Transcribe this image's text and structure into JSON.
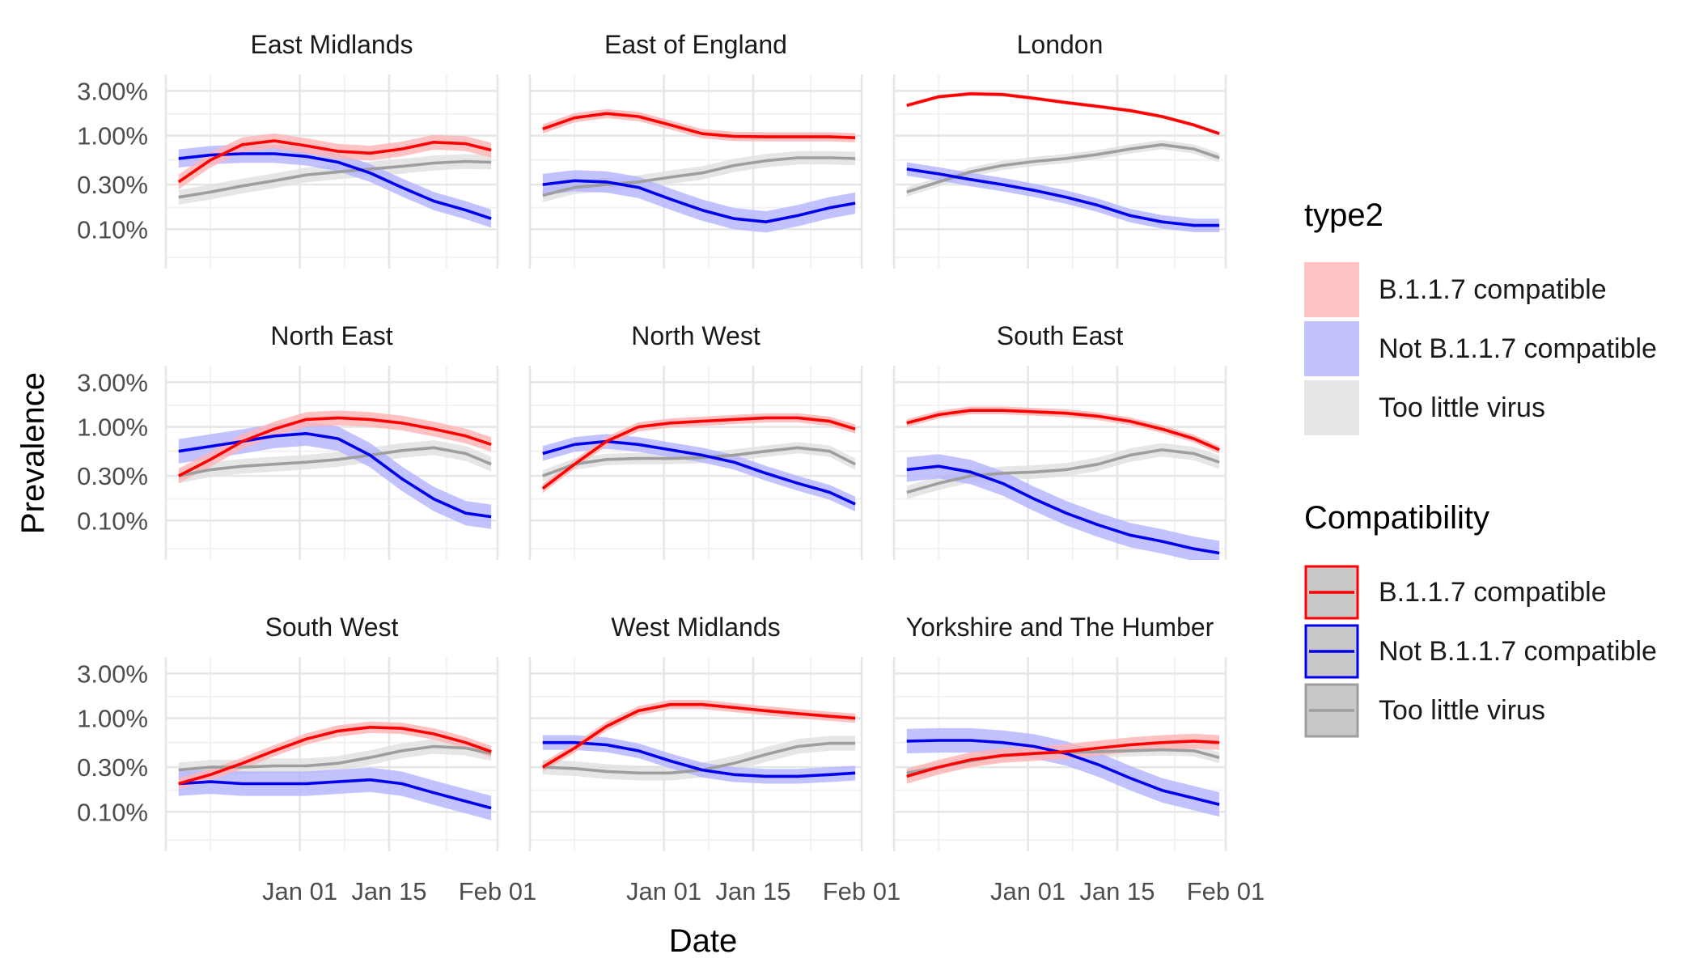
{
  "chart_data": {
    "type": "line",
    "layout": "faceted 3x3 small multiples, shared axes, legends at right",
    "xlabel": "Date",
    "ylabel": "Prevalence",
    "y_scale": "log10",
    "ylim": [
      0.038,
      4.5
    ],
    "y_ticks": [
      0.1,
      0.3,
      1.0,
      3.0
    ],
    "y_tick_labels": [
      "0.10%",
      "0.30%",
      "1.00%",
      "3.00%"
    ],
    "xlim": [
      "2020-12-11",
      "2021-02-01"
    ],
    "x_ticks": [
      "2021-01-01",
      "2021-01-15",
      "2021-02-01"
    ],
    "x_tick_labels": [
      "Jan 01",
      "Jan 15",
      "Feb 01"
    ],
    "grid": true,
    "legend_placement": "right",
    "colors": {
      "B.1.1.7 compatible": "#ff0000",
      "Not B.1.1.7 compatible": "#0000ee",
      "Too little virus": "#9e9e9e",
      "fill_B.1.1.7 compatible": "#ffb3b3",
      "fill_Not B.1.1.7 compatible": "#b3b3ff",
      "fill_Too little virus": "#e0e0e0"
    },
    "x": [
      "2020-12-13",
      "2020-12-18",
      "2020-12-23",
      "2020-12-28",
      "2021-01-02",
      "2021-01-07",
      "2021-01-12",
      "2021-01-17",
      "2021-01-22",
      "2021-01-27",
      "2021-01-31"
    ],
    "legends": [
      {
        "title": "type2",
        "kind": "fill",
        "entries": [
          "B.1.1.7 compatible",
          "Not B.1.1.7 compatible",
          "Too little virus"
        ]
      },
      {
        "title": "Compatibility",
        "kind": "line",
        "entries": [
          "B.1.1.7 compatible",
          "Not B.1.1.7 compatible",
          "Too little virus"
        ]
      }
    ],
    "panels": [
      {
        "title": "East Midlands",
        "series": [
          {
            "name": "Too little virus",
            "values": [
              0.22,
              0.25,
              0.29,
              0.33,
              0.38,
              0.41,
              0.44,
              0.47,
              0.51,
              0.53,
              0.52
            ],
            "band": 0.2
          },
          {
            "name": "B.1.1.7 compatible",
            "values": [
              0.32,
              0.55,
              0.8,
              0.88,
              0.78,
              0.68,
              0.65,
              0.72,
              0.85,
              0.82,
              0.7
            ],
            "band": 0.2
          },
          {
            "name": "Not B.1.1.7 compatible",
            "values": [
              0.57,
              0.62,
              0.64,
              0.64,
              0.6,
              0.52,
              0.4,
              0.28,
              0.2,
              0.16,
              0.13
            ],
            "band": 0.25
          }
        ]
      },
      {
        "title": "East of England",
        "series": [
          {
            "name": "Too little virus",
            "values": [
              0.23,
              0.28,
              0.3,
              0.32,
              0.36,
              0.4,
              0.48,
              0.54,
              0.58,
              0.58,
              0.57
            ],
            "band": 0.18
          },
          {
            "name": "B.1.1.7 compatible",
            "values": [
              1.18,
              1.55,
              1.72,
              1.6,
              1.3,
              1.05,
              0.98,
              0.97,
              0.97,
              0.97,
              0.95
            ],
            "band": 0.12
          },
          {
            "name": "Not B.1.1.7 compatible",
            "values": [
              0.3,
              0.33,
              0.32,
              0.28,
              0.21,
              0.16,
              0.13,
              0.12,
              0.14,
              0.17,
              0.19
            ],
            "band": 0.3
          }
        ]
      },
      {
        "title": "London",
        "series": [
          {
            "name": "Too little virus",
            "values": [
              0.25,
              0.32,
              0.41,
              0.48,
              0.53,
              0.57,
              0.63,
              0.72,
              0.8,
              0.72,
              0.58
            ],
            "band": 0.12
          },
          {
            "name": "B.1.1.7 compatible",
            "values": [
              2.1,
              2.6,
              2.8,
              2.75,
              2.5,
              2.25,
              2.05,
              1.85,
              1.6,
              1.3,
              1.05
            ],
            "band": 0.05
          },
          {
            "name": "Not B.1.1.7 compatible",
            "values": [
              0.44,
              0.39,
              0.34,
              0.3,
              0.26,
              0.22,
              0.18,
              0.14,
              0.12,
              0.11,
              0.11
            ],
            "band": 0.18
          }
        ]
      },
      {
        "title": "North East",
        "series": [
          {
            "name": "Too little virus",
            "values": [
              0.3,
              0.35,
              0.38,
              0.4,
              0.42,
              0.45,
              0.5,
              0.56,
              0.6,
              0.52,
              0.4
            ],
            "band": 0.2
          },
          {
            "name": "B.1.1.7 compatible",
            "values": [
              0.3,
              0.45,
              0.7,
              0.95,
              1.2,
              1.25,
              1.2,
              1.1,
              0.95,
              0.8,
              0.65
            ],
            "band": 0.2
          },
          {
            "name": "Not B.1.1.7 compatible",
            "values": [
              0.55,
              0.62,
              0.7,
              0.8,
              0.85,
              0.75,
              0.5,
              0.28,
              0.17,
              0.12,
              0.11
            ],
            "band": 0.35
          }
        ]
      },
      {
        "title": "North West",
        "series": [
          {
            "name": "Too little virus",
            "values": [
              0.3,
              0.4,
              0.45,
              0.46,
              0.46,
              0.47,
              0.5,
              0.55,
              0.6,
              0.55,
              0.4
            ],
            "band": 0.15
          },
          {
            "name": "B.1.1.7 compatible",
            "values": [
              0.22,
              0.4,
              0.7,
              1.0,
              1.1,
              1.15,
              1.2,
              1.25,
              1.25,
              1.15,
              0.95
            ],
            "band": 0.12
          },
          {
            "name": "Not B.1.1.7 compatible",
            "values": [
              0.52,
              0.65,
              0.7,
              0.65,
              0.57,
              0.5,
              0.42,
              0.32,
              0.25,
              0.2,
              0.15
            ],
            "band": 0.2
          }
        ]
      },
      {
        "title": "South East",
        "series": [
          {
            "name": "Too little virus",
            "values": [
              0.2,
              0.25,
              0.3,
              0.32,
              0.33,
              0.35,
              0.4,
              0.5,
              0.57,
              0.52,
              0.42
            ],
            "band": 0.18
          },
          {
            "name": "B.1.1.7 compatible",
            "values": [
              1.1,
              1.35,
              1.5,
              1.5,
              1.45,
              1.4,
              1.3,
              1.15,
              0.95,
              0.75,
              0.57
            ],
            "band": 0.1
          },
          {
            "name": "Not B.1.1.7 compatible",
            "values": [
              0.35,
              0.38,
              0.33,
              0.25,
              0.17,
              0.12,
              0.09,
              0.07,
              0.06,
              0.05,
              0.045
            ],
            "band": 0.35
          }
        ]
      },
      {
        "title": "South West",
        "series": [
          {
            "name": "Too little virus",
            "values": [
              0.28,
              0.3,
              0.3,
              0.31,
              0.31,
              0.33,
              0.38,
              0.45,
              0.5,
              0.48,
              0.42
            ],
            "band": 0.2
          },
          {
            "name": "B.1.1.7 compatible",
            "values": [
              0.2,
              0.25,
              0.33,
              0.45,
              0.6,
              0.73,
              0.8,
              0.78,
              0.68,
              0.55,
              0.44
            ],
            "band": 0.15
          },
          {
            "name": "Not B.1.1.7 compatible",
            "values": [
              0.2,
              0.21,
              0.2,
              0.2,
              0.2,
              0.21,
              0.22,
              0.2,
              0.16,
              0.13,
              0.11
            ],
            "band": 0.35
          }
        ]
      },
      {
        "title": "West Midlands",
        "series": [
          {
            "name": "Too little virus",
            "values": [
              0.3,
              0.29,
              0.27,
              0.26,
              0.26,
              0.28,
              0.33,
              0.41,
              0.5,
              0.54,
              0.54
            ],
            "band": 0.2
          },
          {
            "name": "B.1.1.7 compatible",
            "values": [
              0.3,
              0.48,
              0.82,
              1.2,
              1.4,
              1.4,
              1.3,
              1.2,
              1.12,
              1.05,
              1.0
            ],
            "band": 0.12
          },
          {
            "name": "Not B.1.1.7 compatible",
            "values": [
              0.55,
              0.55,
              0.52,
              0.45,
              0.35,
              0.28,
              0.25,
              0.24,
              0.24,
              0.25,
              0.26
            ],
            "band": 0.2
          }
        ]
      },
      {
        "title": "Yorkshire and The Humber",
        "series": [
          {
            "name": "Too little virus",
            "values": [
              0.26,
              0.3,
              0.35,
              0.4,
              0.42,
              0.43,
              0.44,
              0.45,
              0.46,
              0.45,
              0.38
            ],
            "band": 0.15
          },
          {
            "name": "B.1.1.7 compatible",
            "values": [
              0.24,
              0.3,
              0.36,
              0.4,
              0.42,
              0.44,
              0.48,
              0.52,
              0.55,
              0.57,
              0.55
            ],
            "band": 0.2
          },
          {
            "name": "Not B.1.1.7 compatible",
            "values": [
              0.57,
              0.58,
              0.58,
              0.55,
              0.5,
              0.42,
              0.32,
              0.23,
              0.17,
              0.14,
              0.12
            ],
            "band": 0.35
          }
        ]
      }
    ]
  }
}
